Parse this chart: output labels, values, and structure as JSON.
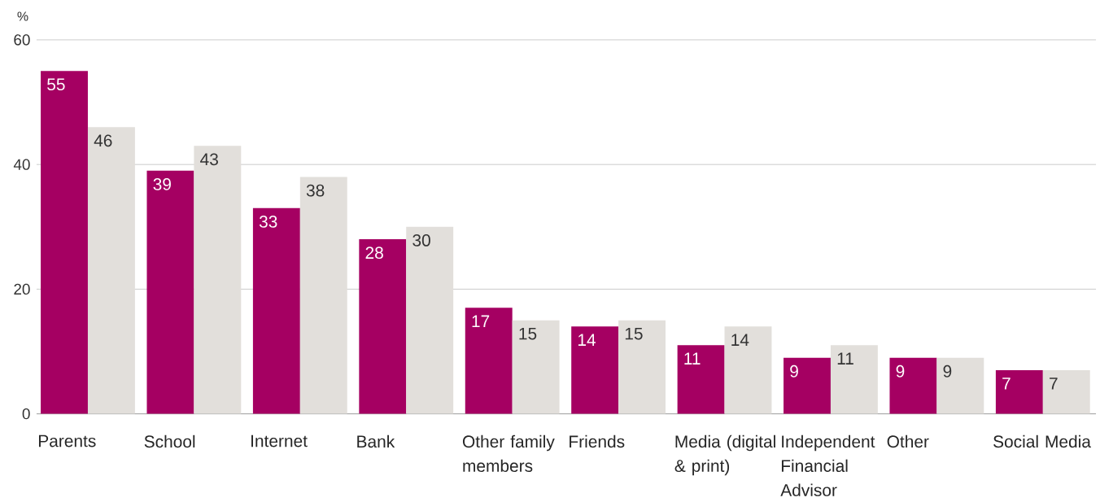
{
  "chart_data": {
    "type": "bar",
    "ylabel": "%",
    "categories": [
      "Parents",
      "School",
      "Internet",
      "Bank",
      "Other family members",
      "Friends",
      "Media (digital & print)",
      "Independent Financial Advisor",
      "Other",
      "Social Media"
    ],
    "series": [
      {
        "color": "#a50062",
        "values": [
          55,
          39,
          33,
          28,
          17,
          14,
          11,
          9,
          9,
          7
        ]
      },
      {
        "color": "#e2dfdb",
        "values": [
          46,
          43,
          38,
          30,
          15,
          15,
          14,
          11,
          9,
          7
        ]
      }
    ],
    "ylim": [
      0,
      60
    ],
    "yticks": [
      0,
      20,
      40,
      60
    ],
    "grid": "y",
    "data_labels": true
  }
}
